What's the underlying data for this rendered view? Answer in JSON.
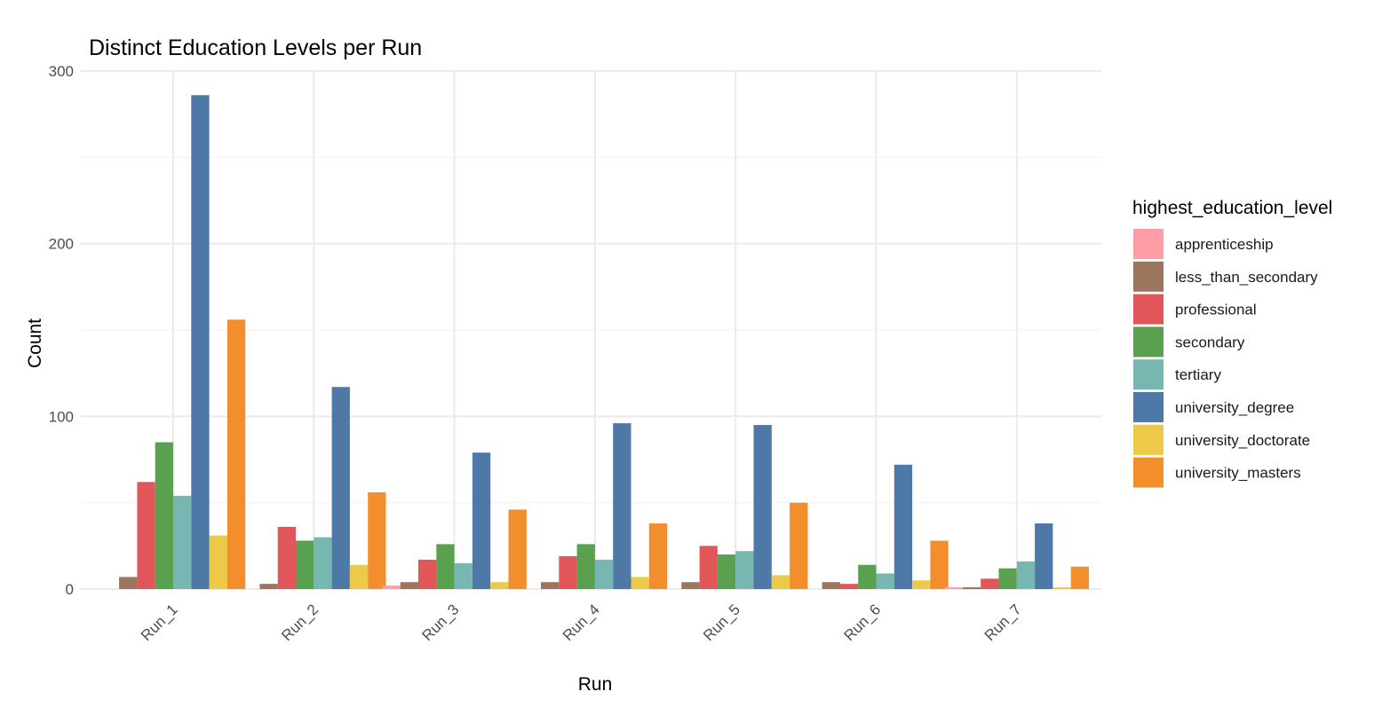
{
  "chart_data": {
    "type": "bar",
    "title": "Distinct Education Levels per Run",
    "xlabel": "Run",
    "ylabel": "Count",
    "ylim": [
      0,
      300
    ],
    "yticks": [
      0,
      100,
      200,
      300
    ],
    "grid": true,
    "legend_position": "right",
    "legend_title": "highest_education_level",
    "categories": [
      "Run_1",
      "Run_2",
      "Run_3",
      "Run_4",
      "Run_5",
      "Run_6",
      "Run_7"
    ],
    "series": [
      {
        "name": "apprenticeship",
        "color": "#FF9DA7",
        "values": [
          0,
          0,
          2,
          0,
          0,
          0,
          1
        ]
      },
      {
        "name": "less_than_secondary",
        "color": "#9C755F",
        "values": [
          7,
          3,
          4,
          4,
          4,
          4,
          1
        ]
      },
      {
        "name": "professional",
        "color": "#E15759",
        "values": [
          62,
          36,
          17,
          19,
          25,
          3,
          6
        ]
      },
      {
        "name": "secondary",
        "color": "#59A14F",
        "values": [
          85,
          28,
          26,
          26,
          20,
          14,
          12
        ]
      },
      {
        "name": "tertiary",
        "color": "#76B7B2",
        "values": [
          54,
          30,
          15,
          17,
          22,
          9,
          16
        ]
      },
      {
        "name": "university_degree",
        "color": "#4E79A7",
        "values": [
          286,
          117,
          79,
          96,
          95,
          72,
          38
        ]
      },
      {
        "name": "university_doctorate",
        "color": "#EDC948",
        "values": [
          31,
          14,
          4,
          7,
          8,
          5,
          1
        ]
      },
      {
        "name": "university_masters",
        "color": "#F28E2B",
        "values": [
          156,
          56,
          46,
          38,
          50,
          28,
          13
        ]
      }
    ]
  }
}
